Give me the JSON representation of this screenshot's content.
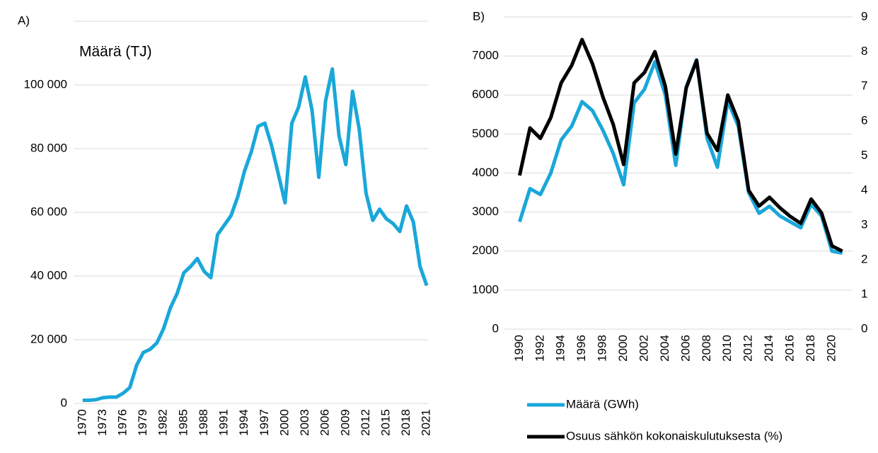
{
  "chart_data": [
    {
      "type": "line",
      "title": "A)",
      "ylabel": "Määrä (TJ)",
      "categories": [
        "1970",
        null,
        null,
        "1973",
        null,
        null,
        "1976",
        null,
        null,
        "1979",
        null,
        null,
        "1982",
        null,
        null,
        "1985",
        null,
        null,
        "1988",
        null,
        null,
        "1991",
        null,
        null,
        "1994",
        null,
        null,
        "1997",
        null,
        null,
        "2000",
        null,
        null,
        "2003",
        null,
        null,
        "2006",
        null,
        null,
        "2009",
        null,
        null,
        "2012",
        null,
        null,
        "2015",
        null,
        null,
        "2018",
        null,
        null,
        "2021"
      ],
      "series": [
        {
          "name": null,
          "color": "#1aa7d9",
          "values": [
            1000,
            1000,
            1200,
            1800,
            2000,
            2000,
            3200,
            5000,
            12000,
            16000,
            17000,
            19000,
            23500,
            30000,
            34500,
            41000,
            43000,
            45500,
            41500,
            39500,
            53000,
            56000,
            59000,
            65000,
            73000,
            79000,
            87000,
            88000,
            81000,
            72000,
            63000,
            88000,
            93000,
            102500,
            92000,
            71000,
            95000,
            105000,
            84000,
            75000,
            98000,
            86000,
            66000,
            57500,
            61000,
            58000,
            56500,
            54000,
            62000,
            57000,
            43000,
            37000
          ]
        }
      ],
      "ylim": [
        0,
        120000
      ],
      "yticks": [
        0,
        {
          "value": 20000,
          "label": "20 000"
        },
        {
          "value": 40000,
          "label": "40 000"
        },
        {
          "value": 60000,
          "label": "60 000"
        },
        {
          "value": 80000,
          "label": "80 000"
        },
        {
          "value": 100000,
          "label": "100 000"
        }
      ],
      "grid": true
    },
    {
      "type": "line",
      "title": "B)",
      "categories": [
        "1990",
        null,
        "1992",
        null,
        "1994",
        null,
        "1996",
        null,
        "1998",
        null,
        "2000",
        null,
        "2002",
        null,
        "2004",
        null,
        "2006",
        null,
        "2008",
        null,
        "2010",
        null,
        "2012",
        null,
        "2014",
        null,
        "2016",
        null,
        "2018",
        null,
        "2020",
        null
      ],
      "series": [
        {
          "name": "Määrä (GWh)",
          "color": "#1aa7d9",
          "values": [
            2750,
            3600,
            3450,
            4000,
            4850,
            5200,
            5830,
            5600,
            5100,
            4500,
            3700,
            5800,
            6150,
            6850,
            6000,
            4200,
            6200,
            6900,
            4900,
            4150,
            5850,
            5200,
            3500,
            2970,
            3150,
            2900,
            2750,
            2600,
            3200,
            2900,
            2000,
            1950
          ]
        },
        {
          "name": "Osuus sähkön kokonaiskulutuksesta (%)",
          "color": "#000000",
          "axis": "y2",
          "values": [
            4.43,
            5.8,
            5.5,
            6.1,
            7.1,
            7.6,
            8.35,
            7.65,
            6.7,
            5.9,
            4.75,
            7.1,
            7.4,
            8.0,
            7.0,
            5.05,
            6.95,
            7.75,
            5.65,
            5.15,
            6.75,
            6.0,
            4.0,
            3.55,
            3.8,
            3.5,
            3.25,
            3.05,
            3.75,
            3.35,
            2.4,
            2.25
          ]
        }
      ],
      "ylim": [
        0,
        8000
      ],
      "yticks": [
        0,
        1000,
        2000,
        3000,
        4000,
        5000,
        6000,
        7000
      ],
      "y2lim": [
        0,
        9
      ],
      "y2ticks": [
        0,
        1,
        2,
        3,
        4,
        5,
        6,
        7,
        8,
        9
      ],
      "grid": true,
      "legend": "bottom"
    }
  ]
}
